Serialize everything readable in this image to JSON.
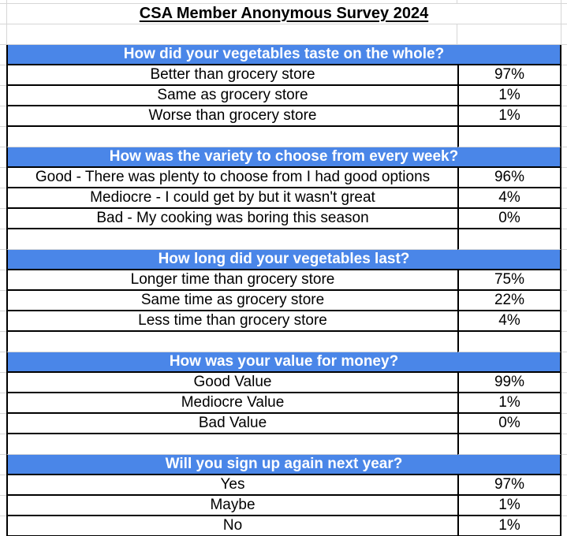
{
  "title": "CSA Member Anonymous Survey 2024",
  "colors": {
    "section_header_bg": "#4a86e8",
    "section_header_text": "#ffffff",
    "cell_border": "#000000",
    "gridline": "#d6d6d6"
  },
  "sections": [
    {
      "question": "How did your vegetables taste on the whole?",
      "answers": [
        {
          "label": "Better than grocery store",
          "value": "97%"
        },
        {
          "label": "Same as grocery store",
          "value": "1%"
        },
        {
          "label": "Worse than grocery store",
          "value": "1%"
        }
      ]
    },
    {
      "question": "How was the variety to choose from every week?",
      "answers": [
        {
          "label": "Good - There was plenty to choose from I had good options",
          "value": "96%"
        },
        {
          "label": "Mediocre - I could get by but it wasn't great",
          "value": "4%"
        },
        {
          "label": "Bad - My cooking was boring this season",
          "value": "0%"
        }
      ]
    },
    {
      "question": "How long did your vegetables last?",
      "answers": [
        {
          "label": "Longer time than grocery store",
          "value": "75%"
        },
        {
          "label": "Same time as grocery store",
          "value": "22%"
        },
        {
          "label": "Less time than grocery store",
          "value": "4%"
        }
      ]
    },
    {
      "question": "How was your value for money?",
      "answers": [
        {
          "label": "Good Value",
          "value": "99%"
        },
        {
          "label": "Mediocre Value",
          "value": "1%"
        },
        {
          "label": "Bad Value",
          "value": "0%"
        }
      ]
    },
    {
      "question": "Will you sign up again next year?",
      "answers": [
        {
          "label": "Yes",
          "value": "97%"
        },
        {
          "label": "Maybe",
          "value": "1%"
        },
        {
          "label": "No",
          "value": "1%"
        }
      ]
    }
  ]
}
